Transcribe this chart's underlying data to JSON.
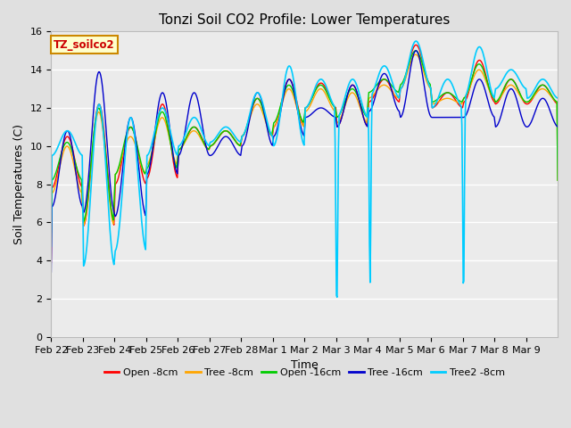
{
  "title": "Tonzi Soil CO2 Profile: Lower Temperatures",
  "xlabel": "Time",
  "ylabel": "Soil Temperatures (C)",
  "ylim": [
    0,
    16
  ],
  "yticks": [
    0,
    2,
    4,
    6,
    8,
    10,
    12,
    14,
    16
  ],
  "xtick_labels": [
    "Feb 22",
    "Feb 23",
    "Feb 24",
    "Feb 25",
    "Feb 26",
    "Feb 27",
    "Feb 28",
    "Mar 1",
    "Mar 2",
    "Mar 3",
    "Mar 4",
    "Mar 5",
    "Mar 6",
    "Mar 7",
    "Mar 8",
    "Mar 9"
  ],
  "series": {
    "Open -8cm": {
      "color": "#ff0000"
    },
    "Tree -8cm": {
      "color": "#ffa500"
    },
    "Open -16cm": {
      "color": "#00cc00"
    },
    "Tree -16cm": {
      "color": "#0000cc"
    },
    "Tree2 -8cm": {
      "color": "#00ccff"
    }
  },
  "legend_label": "TZ_soilco2",
  "background_color": "#e0e0e0",
  "plot_background": "#ebebeb",
  "title_fontsize": 11,
  "axis_label_fontsize": 9,
  "tick_fontsize": 8,
  "legend_fontsize": 8
}
